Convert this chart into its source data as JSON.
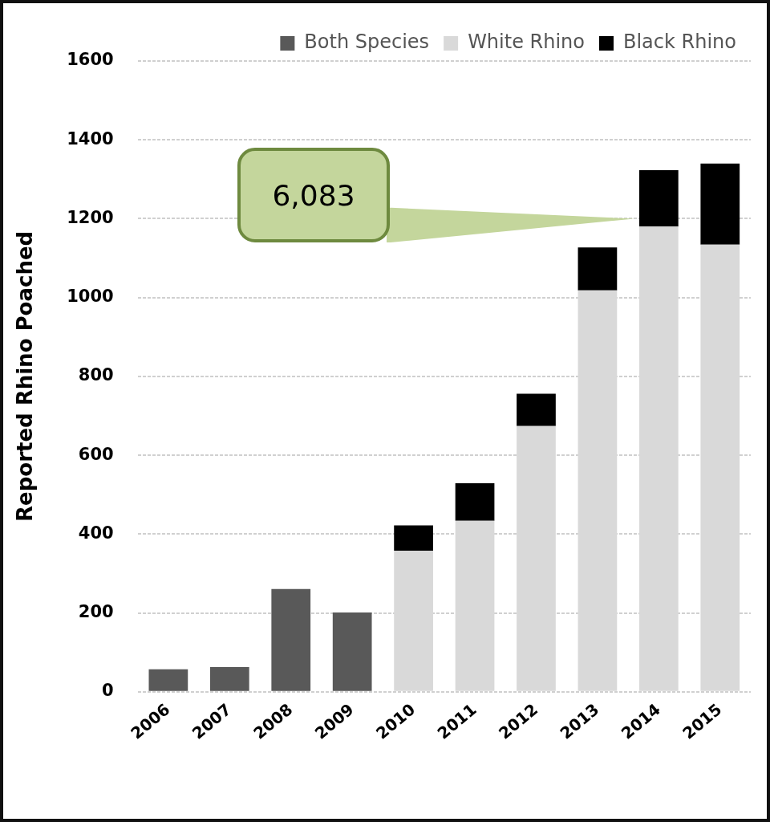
{
  "chart_data": {
    "type": "bar",
    "stacked": true,
    "ylabel": "Reported Rhino Poached",
    "categories": [
      "2006",
      "2007",
      "2008",
      "2009",
      "2010",
      "2011",
      "2012",
      "2013",
      "2014",
      "2015"
    ],
    "series": [
      {
        "name": "Both Species",
        "color": "#595959",
        "values": [
          57,
          63,
          261,
          201,
          null,
          null,
          null,
          null,
          null,
          null
        ]
      },
      {
        "name": "White Rhino",
        "color": "#d9d9d9",
        "values": [
          null,
          null,
          null,
          null,
          358,
          434,
          674,
          1018,
          1180,
          1134
        ]
      },
      {
        "name": "Black Rhino",
        "color": "#000000",
        "values": [
          null,
          null,
          null,
          null,
          64,
          95,
          82,
          109,
          143,
          206
        ]
      }
    ],
    "ylim": [
      0,
      1600
    ],
    "yticks": [
      0,
      200,
      400,
      600,
      800,
      1000,
      1200,
      1400,
      1600
    ],
    "grid": "y",
    "legend": "top right",
    "annotations": [
      "6,083"
    ]
  }
}
